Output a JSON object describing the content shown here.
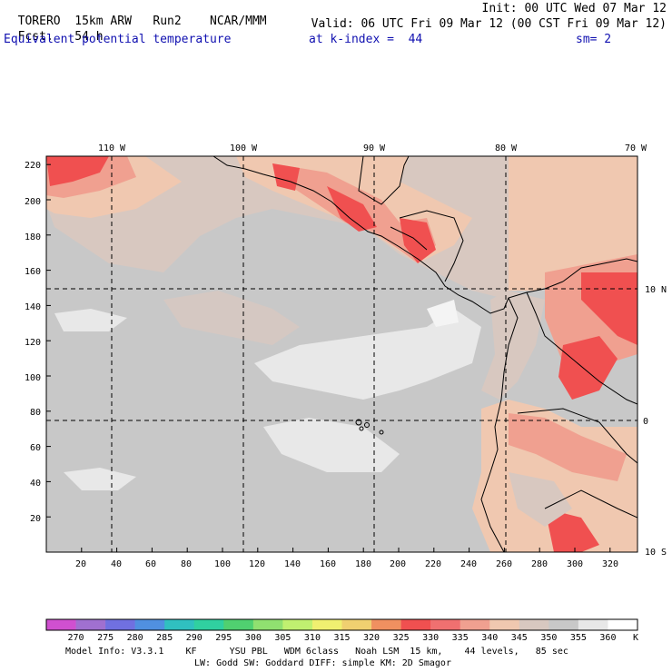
{
  "header": {
    "model": "TORERO",
    "resolution": "15km ARW",
    "run": "Run2",
    "org": "NCAR/MMM",
    "init": "Init: 00 UTC Wed 07 Mar 12",
    "fcst_label": "Fcst.",
    "fcst_value": "54 h",
    "valid": "Valid: 06 UTC Fri 09 Mar 12 (00 CST Fri 09 Mar 12)",
    "field": "Equivalent potential temperature",
    "level": "at k-index =  44",
    "smoothing": "sm= 2"
  },
  "axes": {
    "top_lon_labels": [
      "110 W",
      "100 W",
      "90 W",
      "80 W",
      "70 W"
    ],
    "right_lat_labels": [
      "10 N",
      "0",
      "10 S"
    ],
    "left_grid_labels": [
      "220",
      "200",
      "180",
      "160",
      "140",
      "120",
      "100",
      "80",
      "60",
      "40",
      "20"
    ],
    "bottom_grid_labels": [
      "20",
      "40",
      "60",
      "80",
      "100",
      "120",
      "140",
      "160",
      "180",
      "200",
      "220",
      "240",
      "260",
      "280",
      "300",
      "320"
    ]
  },
  "colorbar": {
    "labels": [
      "270",
      "275",
      "280",
      "285",
      "290",
      "295",
      "300",
      "305",
      "310",
      "315",
      "320",
      "325",
      "330",
      "335",
      "340",
      "345",
      "350",
      "355",
      "360"
    ],
    "unit": "K",
    "colors": [
      "#d050d0",
      "#a070d0",
      "#7070e0",
      "#5090e0",
      "#30c0c0",
      "#30d0a0",
      "#50d070",
      "#90e070",
      "#c0f070",
      "#f0f070",
      "#f0d070",
      "#f09060",
      "#f05050",
      "#f07070",
      "#f0a090",
      "#f0c8b0",
      "#d8c8c0",
      "#c8c8c8",
      "#e8e8e8",
      "#ffffff"
    ]
  },
  "footer": {
    "line1": "Model Info: V3.3.1    KF      YSU PBL   WDM 6class   Noah LSM  15 km,    44 levels,   85 sec",
    "line2": "LW: Godd SW: Goddard DIFF: simple KM: 2D Smagor"
  },
  "map_colors": {
    "ocean_base": "#c8c8c8",
    "cool_patch": "#e8e8e8",
    "whitish": "#f4f4f4",
    "tan": "#d8c8c0",
    "peach": "#f0c8b0",
    "salmon": "#f0a090",
    "red": "#f05050",
    "coast": "#000000"
  }
}
